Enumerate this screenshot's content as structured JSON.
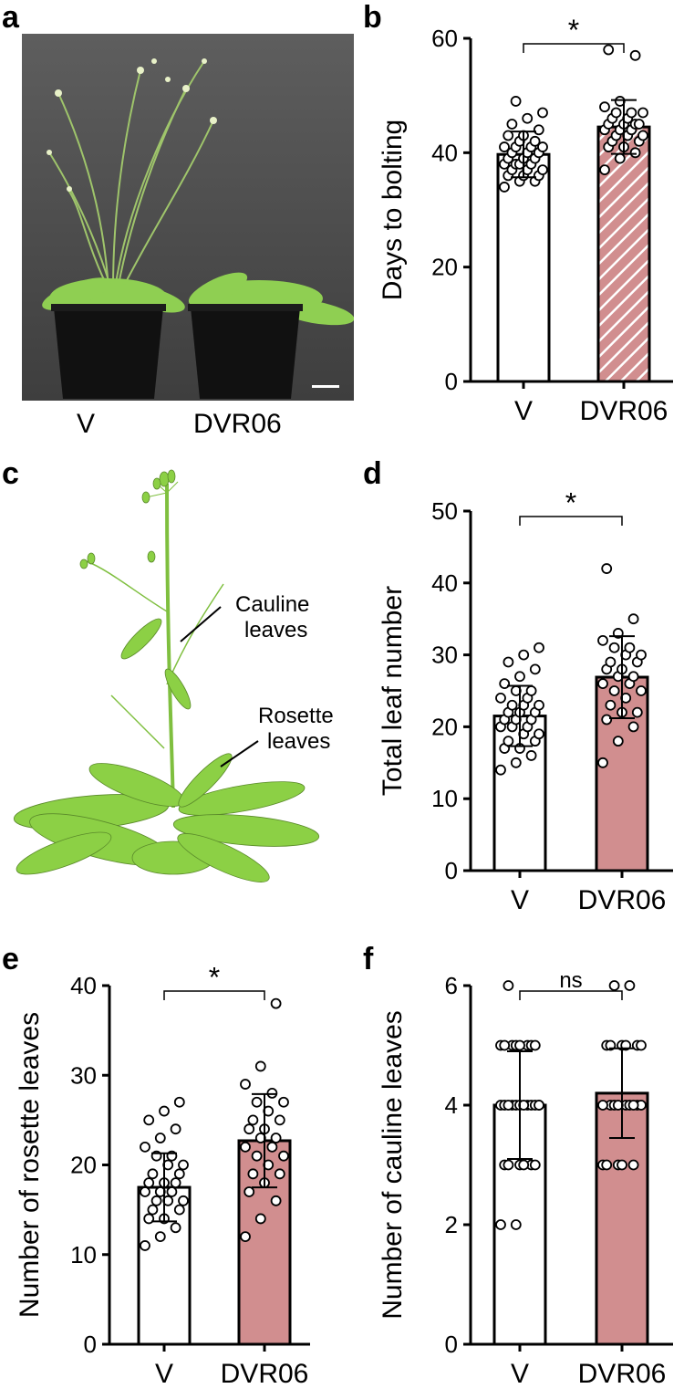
{
  "panels": {
    "a": "a",
    "b": "b",
    "c": "c",
    "d": "d",
    "e": "e",
    "f": "f"
  },
  "photo_labels": {
    "left": "V",
    "right": "DVR06"
  },
  "illustration_labels": {
    "cauline_line1": "Cauline",
    "cauline_line2": "leaves",
    "rosette_line1": "Rosette",
    "rosette_line2": "leaves"
  },
  "colors": {
    "vector_bar": "#ffffff",
    "dvr06_bar": "#d18e8f",
    "axis": "#000000",
    "plant_green": "#8cd045"
  },
  "chart_data": [
    {
      "id": "b",
      "type": "bar",
      "ylabel": "Days to bolting",
      "categories": [
        "V",
        "DVR06"
      ],
      "values": [
        39.7,
        44.5
      ],
      "error": [
        4.0,
        4.7
      ],
      "ylim": [
        0,
        60
      ],
      "yticks": [
        0,
        20,
        40,
        60
      ],
      "significance": "*",
      "hatched": [
        false,
        true
      ],
      "points": [
        [
          34,
          35,
          35,
          36,
          36,
          36,
          37,
          37,
          37,
          38,
          38,
          38,
          38,
          39,
          39,
          39,
          40,
          40,
          40,
          41,
          41,
          41,
          41,
          42,
          42,
          43,
          43,
          44,
          45,
          46,
          47,
          49
        ],
        [
          37,
          39,
          40,
          41,
          41,
          42,
          42,
          43,
          43,
          43,
          44,
          44,
          44,
          45,
          45,
          45,
          45,
          46,
          46,
          47,
          47,
          47,
          48,
          49,
          57,
          58
        ]
      ]
    },
    {
      "id": "d",
      "type": "bar",
      "ylabel": "Total leaf number",
      "categories": [
        "V",
        "DVR06"
      ],
      "values": [
        21.5,
        26.9
      ],
      "error": [
        4.2,
        5.7
      ],
      "ylim": [
        0,
        50
      ],
      "yticks": [
        0,
        10,
        20,
        30,
        40,
        50
      ],
      "significance": "*",
      "hatched": [
        false,
        false
      ],
      "points": [
        [
          14,
          15,
          16,
          17,
          17,
          18,
          18,
          19,
          19,
          20,
          20,
          20,
          21,
          21,
          21,
          22,
          22,
          22,
          23,
          23,
          23,
          24,
          24,
          25,
          25,
          26,
          27,
          28,
          29,
          30,
          31
        ],
        [
          15,
          18,
          20,
          21,
          22,
          22,
          23,
          24,
          25,
          25,
          26,
          26,
          27,
          27,
          28,
          28,
          29,
          29,
          30,
          30,
          31,
          31,
          32,
          33,
          35,
          42
        ]
      ]
    },
    {
      "id": "e",
      "type": "bar",
      "ylabel": "Number of rosette leaves",
      "categories": [
        "V",
        "DVR06"
      ],
      "values": [
        17.5,
        22.7
      ],
      "error": [
        3.8,
        5.2
      ],
      "ylim": [
        0,
        40
      ],
      "yticks": [
        0,
        10,
        20,
        30,
        40
      ],
      "significance": "*",
      "hatched": [
        false,
        false
      ],
      "points": [
        [
          11,
          12,
          13,
          14,
          14,
          15,
          15,
          16,
          16,
          16,
          17,
          17,
          17,
          18,
          18,
          18,
          19,
          19,
          20,
          20,
          21,
          21,
          22,
          23,
          24,
          25,
          26,
          27
        ],
        [
          12,
          14,
          16,
          17,
          18,
          19,
          19,
          20,
          21,
          21,
          22,
          22,
          23,
          23,
          24,
          24,
          25,
          25,
          26,
          27,
          27,
          28,
          29,
          31,
          38
        ]
      ]
    },
    {
      "id": "f",
      "type": "bar",
      "ylabel": "Number of cauline leaves",
      "categories": [
        "V",
        "DVR06"
      ],
      "values": [
        4.0,
        4.2
      ],
      "error": [
        0.9,
        0.75
      ],
      "ylim": [
        0,
        6
      ],
      "yticks": [
        0,
        2,
        4,
        6
      ],
      "significance": "ns",
      "hatched": [
        false,
        false
      ],
      "points": [
        [
          2,
          2,
          3,
          3,
          3,
          3,
          3,
          3,
          4,
          4,
          4,
          4,
          4,
          4,
          4,
          4,
          4,
          4,
          4,
          4,
          5,
          5,
          5,
          5,
          5,
          5,
          5,
          5,
          6
        ],
        [
          3,
          3,
          3,
          3,
          3,
          4,
          4,
          4,
          4,
          4,
          4,
          4,
          4,
          4,
          5,
          5,
          5,
          5,
          5,
          5,
          6,
          6
        ]
      ]
    }
  ]
}
